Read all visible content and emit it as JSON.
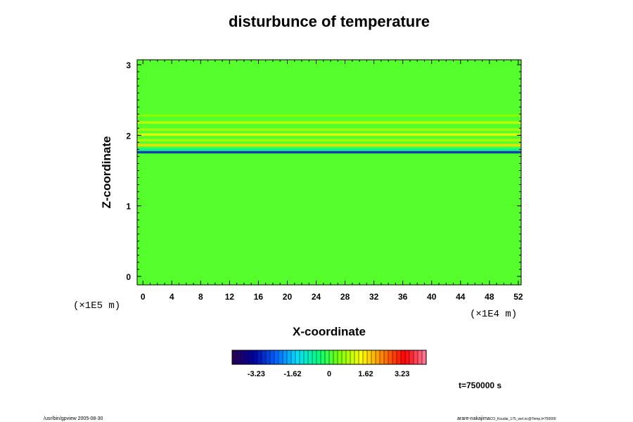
{
  "chart_data": {
    "type": "heatmap",
    "title": "disturbunce of temperature",
    "xlabel": "X-coordinate",
    "ylabel": "Z-coordinate",
    "x_unit": "(×1E4 m)",
    "y_unit": "(×1E5 m)",
    "x_ticks": [
      0,
      4,
      8,
      12,
      16,
      20,
      24,
      28,
      32,
      36,
      40,
      44,
      48,
      52
    ],
    "y_ticks": [
      0,
      1,
      2,
      3
    ],
    "xlim": [
      -0.8,
      52.4
    ],
    "ylim": [
      -0.12,
      3.07
    ],
    "colorbar": {
      "ticks": [
        "-3.23",
        "-1.62",
        "0",
        "1.62",
        "3.23"
      ],
      "tick_values": [
        -3.23,
        -1.62,
        0,
        1.62,
        3.23
      ],
      "range": [
        -4.3,
        4.3
      ],
      "colors": [
        "#2a0050",
        "#0000a0",
        "#0060ff",
        "#00e0ff",
        "#00ff80",
        "#80ff00",
        "#ffff00",
        "#ff8000",
        "#ff0000",
        "#ff80a0"
      ]
    },
    "background_value": 0.15,
    "features": [
      {
        "z": 1.76,
        "value": -3.0
      },
      {
        "z": 1.8,
        "value": -0.8
      },
      {
        "z": 1.86,
        "value": 1.7
      },
      {
        "z": 1.93,
        "value": 0.9
      },
      {
        "z": 2.01,
        "value": 1.4
      },
      {
        "z": 2.08,
        "value": 0.8
      },
      {
        "z": 2.18,
        "value": 1.0
      },
      {
        "z": 2.28,
        "value": 0.6
      }
    ],
    "time_label": "t=750000 s"
  },
  "footer": {
    "left": "/usr/bin/gpview 2005-08-30",
    "right_main": "arare-nakajima",
    "right_sub": "CO_Koudai_175_wet.nc@Temp,t=750000"
  }
}
